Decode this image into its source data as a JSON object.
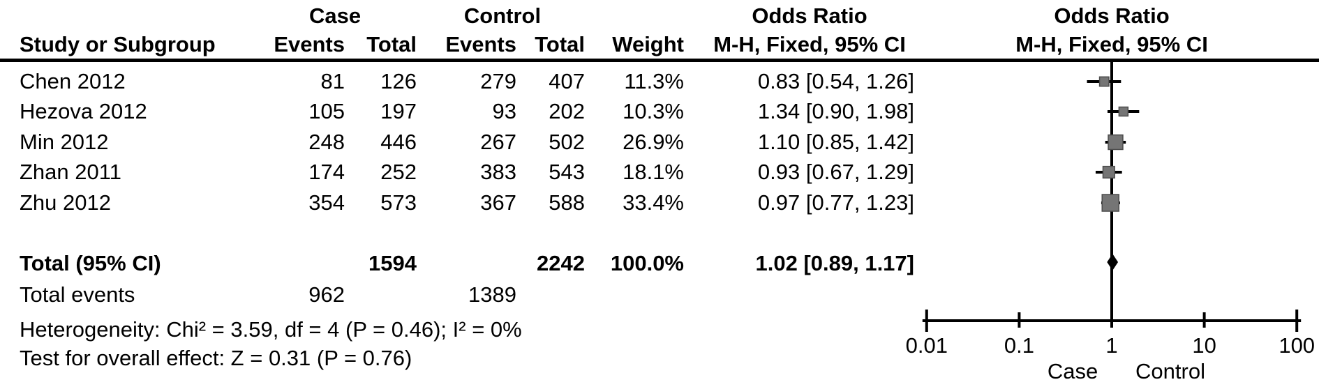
{
  "table": {
    "header": {
      "group_case": "Case",
      "group_control": "Control",
      "col_study": "Study or Subgroup",
      "col_case_events": "Events",
      "col_case_total": "Total",
      "col_control_events": "Events",
      "col_control_total": "Total",
      "col_weight": "Weight",
      "or_text_title": "Odds Ratio",
      "or_text_subtitle": "M-H, Fixed, 95% CI",
      "or_plot_title": "Odds Ratio",
      "or_plot_subtitle": "M-H, Fixed, 95% CI"
    },
    "total_row": {
      "label": "Total (95% CI)",
      "case_total": "1594",
      "control_total": "2242",
      "weight": "100.0%",
      "or_ci": "1.02 [0.89, 1.17]"
    },
    "total_events_row": {
      "label": "Total events",
      "case_events": "962",
      "control_events": "1389"
    },
    "heterogeneity": "Heterogeneity: Chi² = 3.59, df = 4 (P = 0.46); I² = 0%",
    "overall_effect": "Test for overall effect: Z = 0.31 (P = 0.76)"
  },
  "chart_data": {
    "type": "scatter",
    "subtype": "forest-plot",
    "x_scale": "log10",
    "x_ticks": [
      0.01,
      0.1,
      1,
      10,
      100
    ],
    "x_tick_labels": [
      "0.01",
      "0.1",
      "1",
      "10",
      "100"
    ],
    "reference_line": 1,
    "axis_left_label": "Case",
    "axis_right_label": "Control",
    "studies": [
      {
        "name": "Chen 2012",
        "case_events": "81",
        "case_total": "126",
        "control_events": "279",
        "control_total": "407",
        "weight": "11.3%",
        "weight_pct": 11.3,
        "or": 0.83,
        "ci_low": 0.54,
        "ci_high": 1.26,
        "or_ci": "0.83 [0.54, 1.26]"
      },
      {
        "name": "Hezova 2012",
        "case_events": "105",
        "case_total": "197",
        "control_events": "93",
        "control_total": "202",
        "weight": "10.3%",
        "weight_pct": 10.3,
        "or": 1.34,
        "ci_low": 0.9,
        "ci_high": 1.98,
        "or_ci": "1.34 [0.90, 1.98]"
      },
      {
        "name": "Min 2012",
        "case_events": "248",
        "case_total": "446",
        "control_events": "267",
        "control_total": "502",
        "weight": "26.9%",
        "weight_pct": 26.9,
        "or": 1.1,
        "ci_low": 0.85,
        "ci_high": 1.42,
        "or_ci": "1.10 [0.85, 1.42]"
      },
      {
        "name": "Zhan 2011",
        "case_events": "174",
        "case_total": "252",
        "control_events": "383",
        "control_total": "543",
        "weight": "18.1%",
        "weight_pct": 18.1,
        "or": 0.93,
        "ci_low": 0.67,
        "ci_high": 1.29,
        "or_ci": "0.93 [0.67, 1.29]"
      },
      {
        "name": "Zhu 2012",
        "case_events": "354",
        "case_total": "573",
        "control_events": "367",
        "control_total": "588",
        "weight": "33.4%",
        "weight_pct": 33.4,
        "or": 0.97,
        "ci_low": 0.77,
        "ci_high": 1.23,
        "or_ci": "0.97 [0.77, 1.23]"
      }
    ],
    "summary": {
      "label": "Total (95% CI)",
      "or": 1.02,
      "ci_low": 0.89,
      "ci_high": 1.17,
      "weight_pct": 100.0,
      "or_ci": "1.02 [0.89, 1.17]"
    }
  },
  "colors": {
    "marker": "#757575",
    "marker_border": "#4c4c4c",
    "line": "#000000",
    "text": "#000000",
    "background": "#ffffff"
  }
}
